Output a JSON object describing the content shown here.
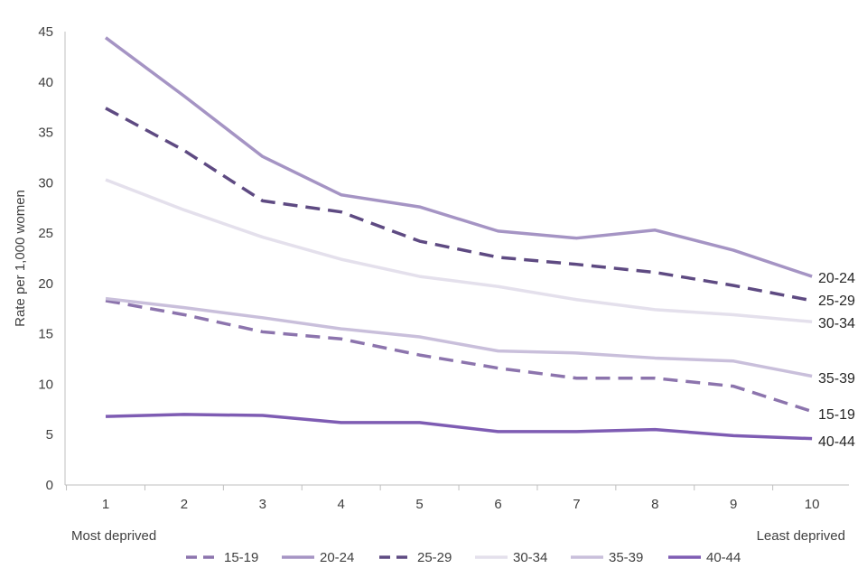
{
  "chart_data": {
    "type": "line",
    "title": "",
    "xlabel": "",
    "ylabel": "Rate per 1,000 women",
    "x": [
      "1",
      "2",
      "3",
      "4",
      "5",
      "6",
      "7",
      "8",
      "9",
      "10"
    ],
    "x_annotations": {
      "left": "Most deprived",
      "right": "Least deprived"
    },
    "ylim": [
      0,
      45
    ],
    "yticks": [
      "0",
      "5",
      "10",
      "15",
      "20",
      "25",
      "30",
      "35",
      "40",
      "45"
    ],
    "grid": false,
    "legend_position": "bottom",
    "series": [
      {
        "name": "15-19",
        "color": "#8c74ad",
        "dash": true,
        "values": [
          18.3,
          16.9,
          15.2,
          14.5,
          12.9,
          11.6,
          10.6,
          10.6,
          9.8,
          7.3
        ]
      },
      {
        "name": "20-24",
        "color": "#a594c4",
        "dash": false,
        "values": [
          44.4,
          38.6,
          32.6,
          28.8,
          27.6,
          25.2,
          24.5,
          25.3,
          23.3,
          20.7
        ]
      },
      {
        "name": "25-29",
        "color": "#5e4a82",
        "dash": true,
        "values": [
          37.4,
          33.2,
          28.2,
          27.1,
          24.2,
          22.6,
          21.9,
          21.1,
          19.8,
          18.3
        ]
      },
      {
        "name": "30-34",
        "color": "#e4e0ec",
        "dash": false,
        "values": [
          30.3,
          27.3,
          24.6,
          22.4,
          20.7,
          19.7,
          18.4,
          17.4,
          16.9,
          16.2
        ]
      },
      {
        "name": "35-39",
        "color": "#c9bfdb",
        "dash": false,
        "values": [
          18.5,
          17.6,
          16.6,
          15.5,
          14.7,
          13.3,
          13.1,
          12.6,
          12.3,
          10.8
        ]
      },
      {
        "name": "40-44",
        "color": "#7e5cb3",
        "dash": false,
        "values": [
          6.8,
          7.0,
          6.9,
          6.2,
          6.2,
          5.3,
          5.3,
          5.5,
          4.9,
          4.6
        ]
      }
    ]
  }
}
